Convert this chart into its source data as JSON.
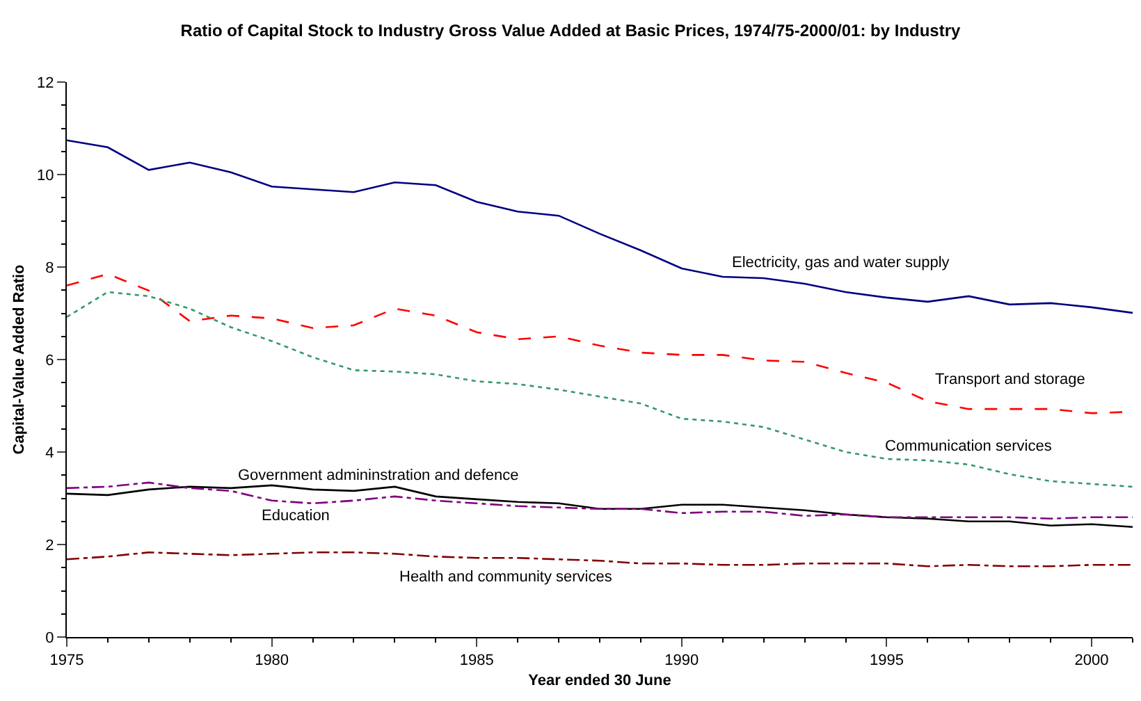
{
  "chart_data": {
    "type": "line",
    "title": "Ratio of Capital Stock to Industry Gross Value Added at Basic Prices, 1974/75-2000/01: by Industry",
    "xlabel": "Year ended 30 June",
    "ylabel": "Capital-Value Added Ratio",
    "x": [
      1975,
      1976,
      1977,
      1978,
      1979,
      1980,
      1981,
      1982,
      1983,
      1984,
      1985,
      1986,
      1987,
      1988,
      1989,
      1990,
      1991,
      1992,
      1993,
      1994,
      1995,
      1996,
      1997,
      1998,
      1999,
      2000,
      2001
    ],
    "xlim": [
      1975,
      2001
    ],
    "xticks": [
      1975,
      1980,
      1985,
      1990,
      1995,
      2000
    ],
    "ylim": [
      0,
      12
    ],
    "yticks": [
      0,
      2,
      4,
      6,
      8,
      10,
      12
    ],
    "grid": false,
    "legend": false,
    "marker": "none",
    "series": [
      {
        "name": "Electricity, gas and water supply",
        "color": "#000080",
        "line_style": "solid",
        "values": [
          10.74,
          10.59,
          10.1,
          10.26,
          10.05,
          9.74,
          9.68,
          9.62,
          9.83,
          9.77,
          9.41,
          9.2,
          9.11,
          8.72,
          8.36,
          7.97,
          7.79,
          7.76,
          7.64,
          7.46,
          7.34,
          7.25,
          7.37,
          7.19,
          7.22,
          7.13,
          7.01
        ]
      },
      {
        "name": "Transport and storage",
        "color": "#ff0000",
        "line_style": "dashed",
        "values": [
          7.6,
          7.85,
          7.49,
          6.83,
          6.95,
          6.89,
          6.68,
          6.74,
          7.1,
          6.95,
          6.59,
          6.44,
          6.5,
          6.3,
          6.15,
          6.1,
          6.1,
          5.98,
          5.95,
          5.71,
          5.5,
          5.1,
          4.93,
          4.93,
          4.93,
          4.84,
          4.87
        ]
      },
      {
        "name": "Communication services",
        "color": "#339966",
        "line_style": "dotted",
        "values": [
          6.92,
          7.46,
          7.37,
          7.1,
          6.7,
          6.4,
          6.05,
          5.77,
          5.74,
          5.68,
          5.53,
          5.47,
          5.35,
          5.2,
          5.05,
          4.72,
          4.66,
          4.54,
          4.27,
          4.0,
          3.85,
          3.82,
          3.73,
          3.52,
          3.37,
          3.31,
          3.25
        ]
      },
      {
        "name": "Government admininstration and defence",
        "color": "#000000",
        "line_style": "solid",
        "values": [
          3.1,
          3.07,
          3.19,
          3.25,
          3.22,
          3.28,
          3.19,
          3.16,
          3.25,
          3.04,
          2.98,
          2.92,
          2.89,
          2.77,
          2.77,
          2.86,
          2.86,
          2.8,
          2.74,
          2.65,
          2.59,
          2.56,
          2.5,
          2.5,
          2.41,
          2.44,
          2.38
        ]
      },
      {
        "name": "Education",
        "color": "#800080",
        "line_style": "dashdot",
        "values": [
          3.22,
          3.25,
          3.34,
          3.22,
          3.16,
          2.95,
          2.89,
          2.95,
          3.04,
          2.95,
          2.89,
          2.83,
          2.8,
          2.77,
          2.77,
          2.68,
          2.71,
          2.71,
          2.62,
          2.65,
          2.59,
          2.59,
          2.59,
          2.59,
          2.56,
          2.59,
          2.59
        ]
      },
      {
        "name": "Health and community services",
        "color": "#800000",
        "line_style": "dashdot",
        "values": [
          1.68,
          1.74,
          1.83,
          1.8,
          1.77,
          1.8,
          1.83,
          1.83,
          1.8,
          1.74,
          1.71,
          1.71,
          1.68,
          1.65,
          1.59,
          1.59,
          1.56,
          1.56,
          1.59,
          1.59,
          1.59,
          1.53,
          1.56,
          1.53,
          1.53,
          1.56,
          1.56
        ]
      }
    ]
  }
}
